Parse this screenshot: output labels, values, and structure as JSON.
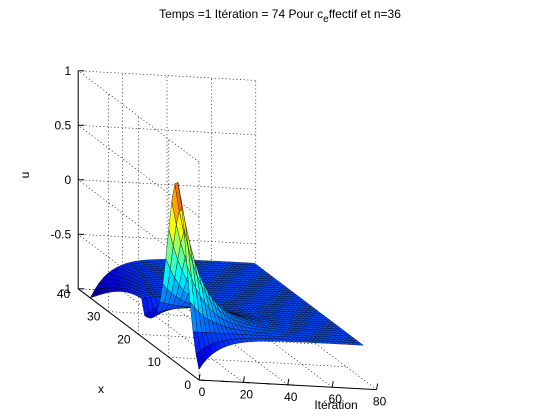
{
  "chart_data": {
    "type": "surface",
    "title_parts": {
      "before_sub": "Temps =1 Itération = 74 Pour c",
      "sub": "e",
      "after_sub": "ffectif et n=36"
    },
    "xlabel": "Itération",
    "ylabel": "x",
    "zlabel": "u",
    "xlim": [
      0,
      80
    ],
    "ylim": [
      0,
      40
    ],
    "zlim": [
      -1,
      1
    ],
    "xticks": [
      "0",
      "20",
      "40",
      "60",
      "80"
    ],
    "yticks": [
      "0",
      "10",
      "20",
      "30",
      "40"
    ],
    "zticks": [
      "-1",
      "-0.5",
      "0",
      "0.5",
      "1"
    ],
    "grid": true,
    "colormap": "jet",
    "surface": {
      "iteration_range": [
        0,
        74
      ],
      "x_range": [
        0,
        36
      ],
      "steady_value": -0.6,
      "initial_profile_peak": 0.2,
      "initial_profile_min": -1,
      "description": ""
    }
  }
}
